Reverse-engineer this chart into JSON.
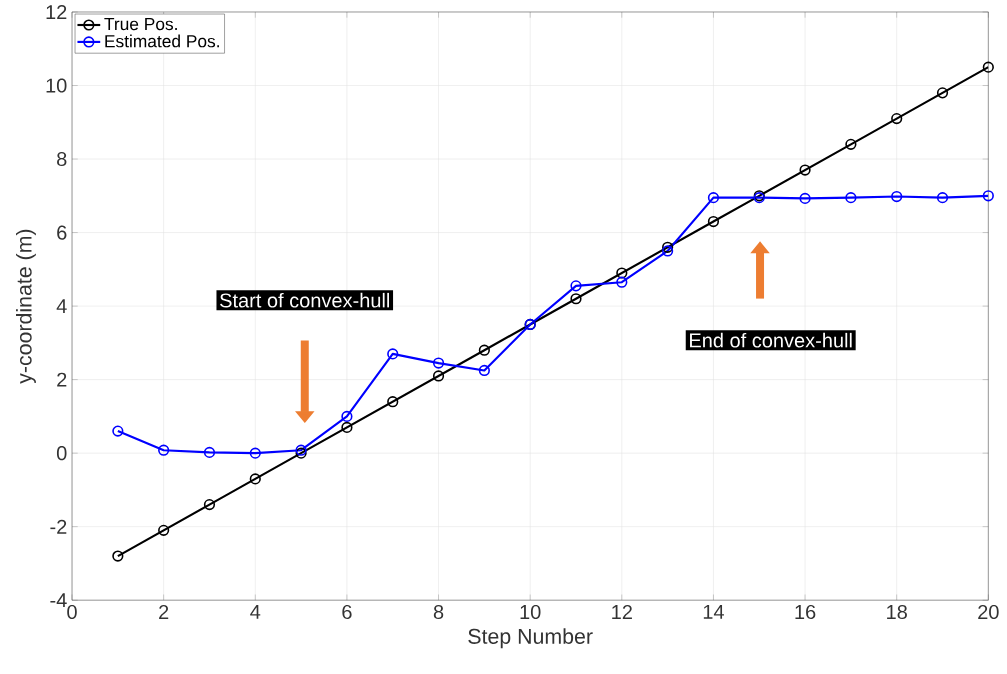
{
  "chart_data": {
    "type": "line",
    "xlabel": "Step Number",
    "ylabel": "y-coordinate (m)",
    "x": [
      1,
      2,
      3,
      4,
      5,
      6,
      7,
      8,
      9,
      10,
      11,
      12,
      13,
      14,
      15,
      16,
      17,
      18,
      19,
      20
    ],
    "series": [
      {
        "name": "True Pos.",
        "color": "#000000",
        "values": [
          -2.8,
          -2.1,
          -1.4,
          -0.7,
          0,
          0.7,
          1.4,
          2.1,
          2.8,
          3.5,
          4.2,
          4.9,
          5.6,
          6.3,
          7.0,
          7.7,
          8.4,
          9.1,
          9.8,
          10.5
        ]
      },
      {
        "name": "Estimated Pos.",
        "color": "#0000ff",
        "values": [
          0.6,
          0.08,
          0.02,
          0,
          0.08,
          1.0,
          2.7,
          2.45,
          2.25,
          3.5,
          4.55,
          4.65,
          5.5,
          6.95,
          6.95,
          6.93,
          6.95,
          6.98,
          6.95,
          7.0
        ]
      }
    ],
    "xlim": [
      0,
      20
    ],
    "ylim": [
      -4,
      12
    ],
    "xticks": [
      0,
      2,
      4,
      6,
      8,
      10,
      12,
      14,
      16,
      18,
      20
    ],
    "yticks": [
      -4,
      -2,
      0,
      2,
      4,
      6,
      8,
      10,
      12
    ],
    "grid": true,
    "legend": "top left",
    "marker": "circle",
    "line_style": "solid",
    "annotations": [
      "Start of convex-hull",
      "End of convex-hull"
    ]
  }
}
